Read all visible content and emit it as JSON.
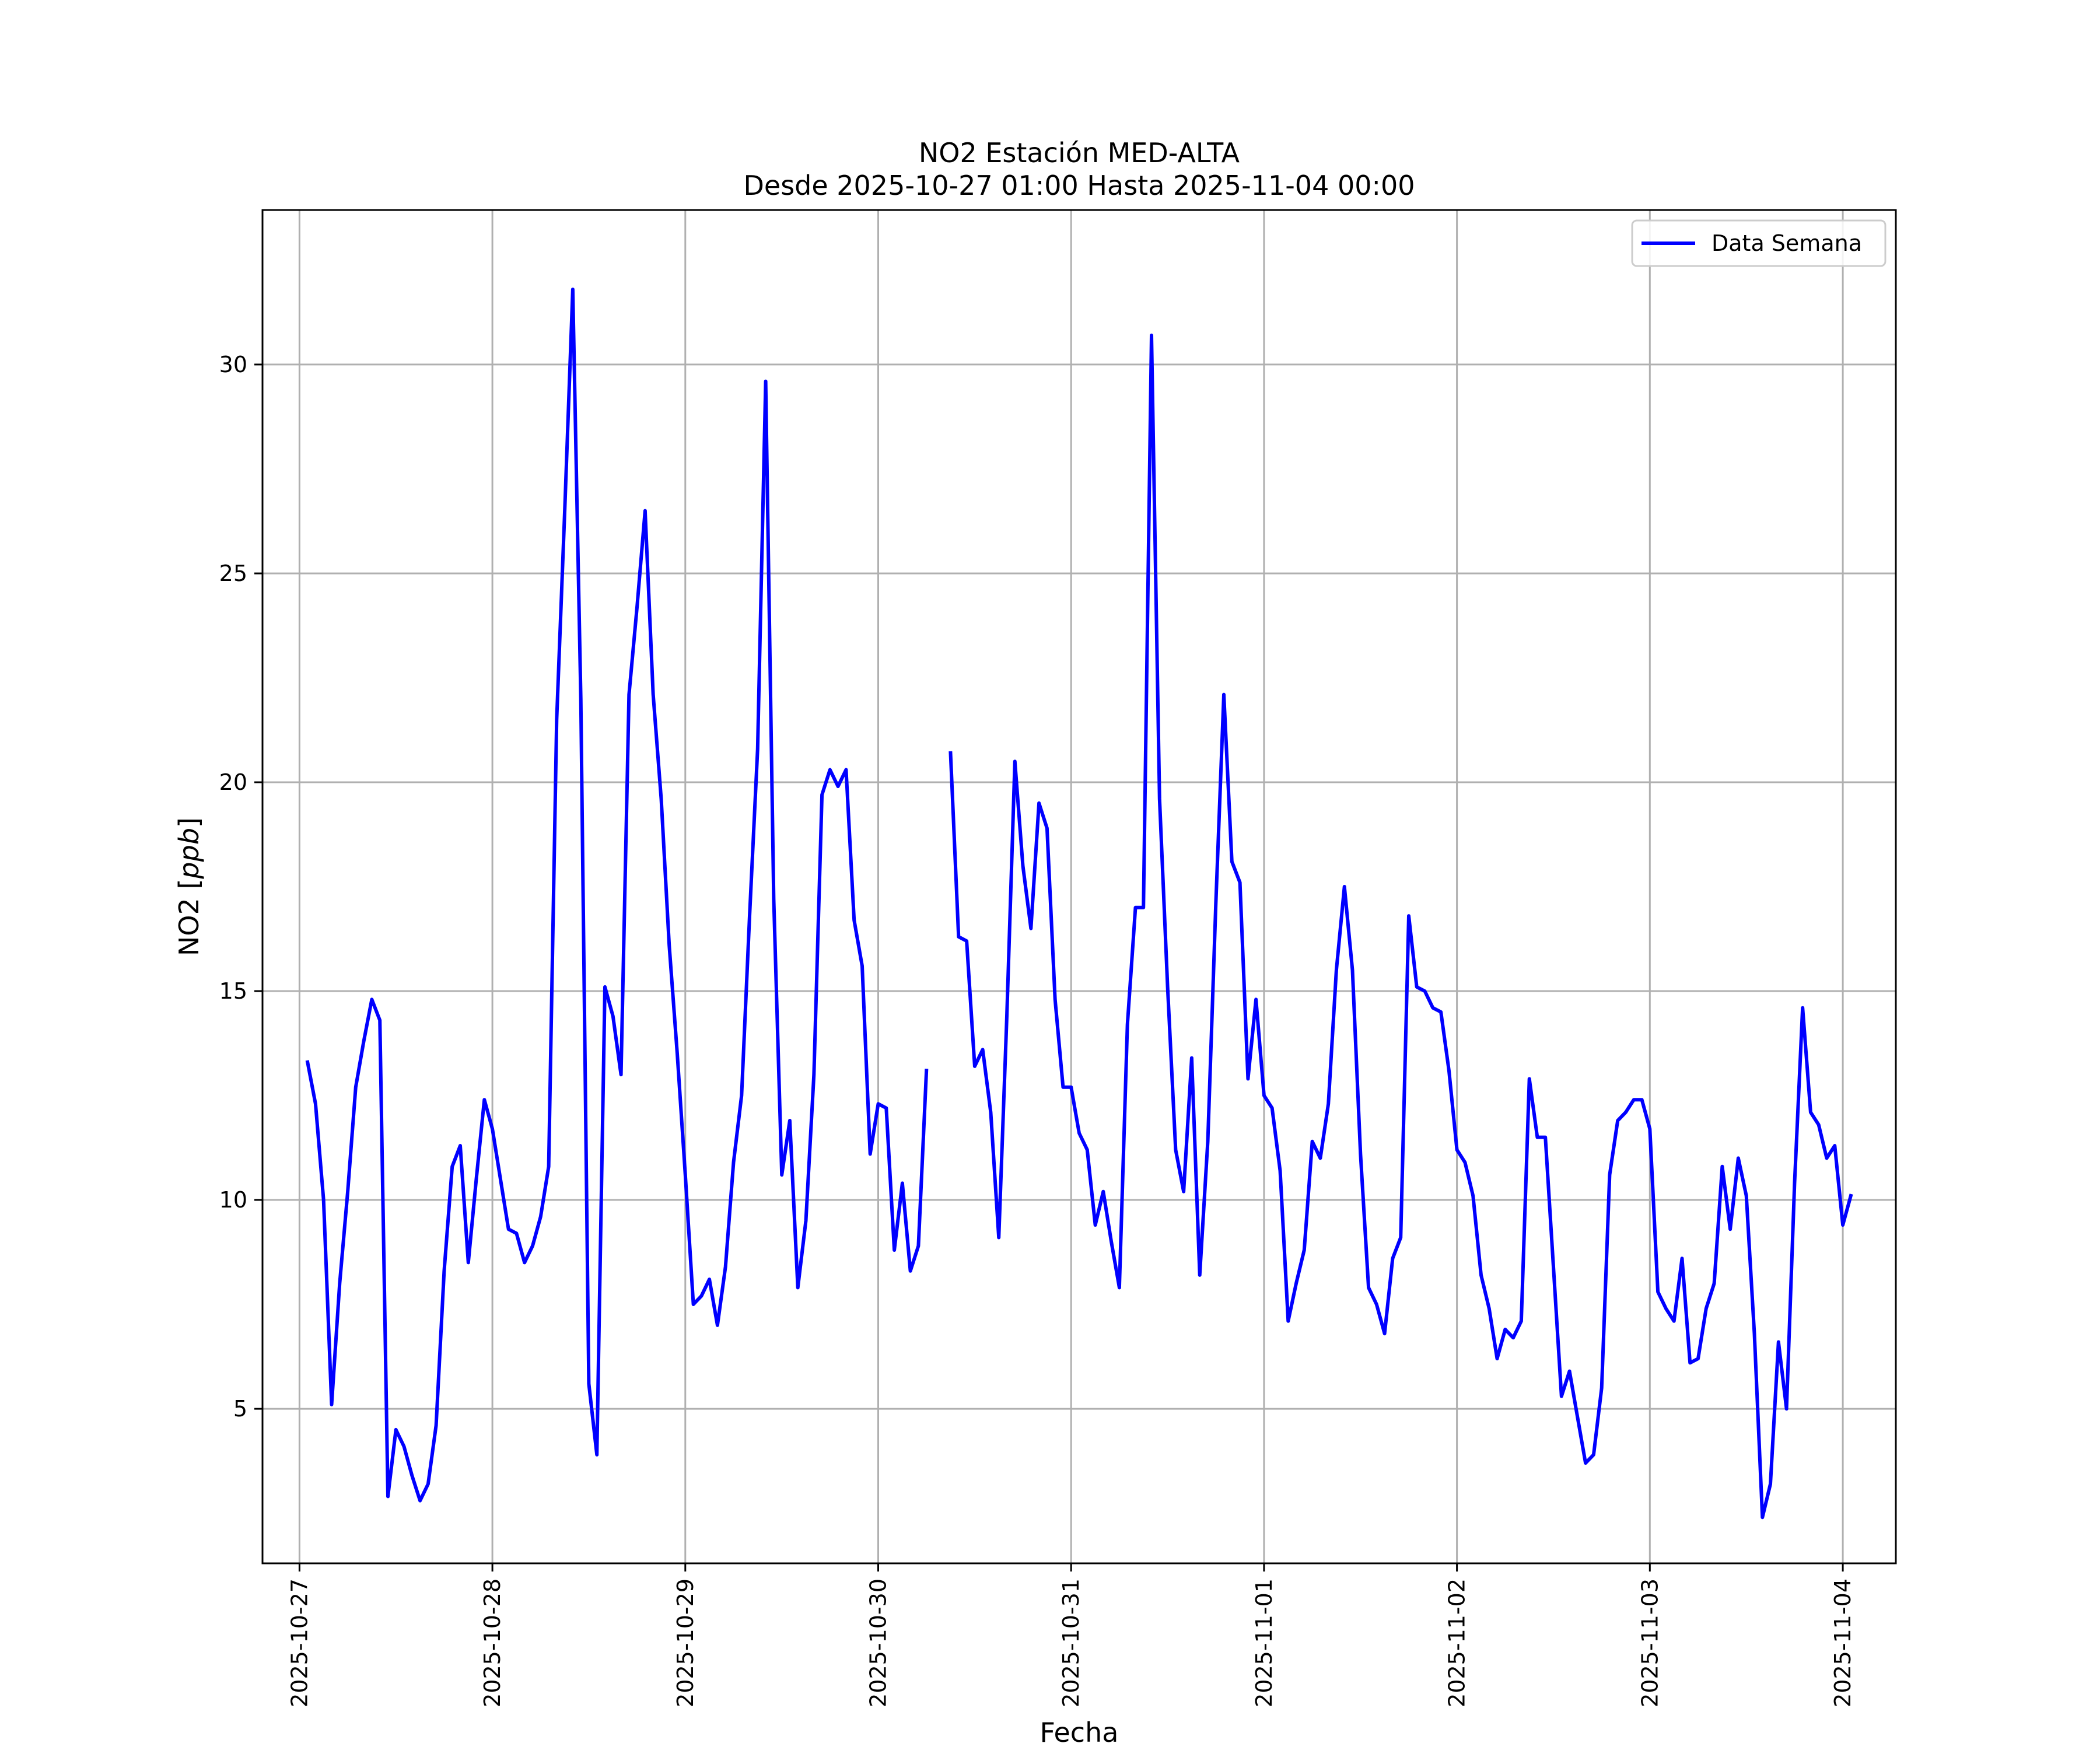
{
  "chart_data": {
    "type": "line",
    "title_line1": "NO2 Estación MED-ALTA",
    "title_line2": "Desde 2025-10-27 01:00 Hasta 2025-11-04 00:00",
    "xlabel": "Fecha",
    "ylabel": "NO2 [ppb]",
    "ylabel_prefix": "NO2 [",
    "ylabel_unit": "ppb",
    "ylabel_suffix": "]",
    "x_tick_labels": [
      "2025-10-27",
      "2025-10-28",
      "2025-10-29",
      "2025-10-30",
      "2025-10-31",
      "2025-11-01",
      "2025-11-02",
      "2025-11-03",
      "2025-11-04"
    ],
    "y_ticks": [
      5,
      10,
      15,
      20,
      25,
      30
    ],
    "y_tick_labels": [
      "5",
      "10",
      "15",
      "20",
      "25",
      "30"
    ],
    "xlim": [
      "2025-10-26 19:24",
      "2025-11-04 06:36"
    ],
    "ylim": [
      1.3,
      33.7
    ],
    "grid": true,
    "legend_position": "top-right",
    "series": [
      {
        "name": "Data Semana",
        "color": "#0000ff",
        "start": "2025-10-27 01:00",
        "step_hours": 1,
        "values": [
          13.3,
          12.3,
          10,
          5.1,
          8,
          10.2,
          12.7,
          13.8,
          14.8,
          14.3,
          2.9,
          4.5,
          4.1,
          3.4,
          2.8,
          3.2,
          4.6,
          8.3,
          10.8,
          11.3,
          8.5,
          10.5,
          12.4,
          11.7,
          10.5,
          9.3,
          9.2,
          8.5,
          8.9,
          9.6,
          10.8,
          21.5,
          26.5,
          31.8,
          22,
          5.6,
          3.9,
          15.1,
          14.4,
          13,
          22.1,
          24.2,
          26.5,
          22.1,
          19.6,
          16.1,
          13.5,
          10.6,
          7.5,
          7.7,
          8.1,
          7,
          8.4,
          10.9,
          12.5,
          16.8,
          20.8,
          29.6,
          17.2,
          10.6,
          11.9,
          7.9,
          9.5,
          13,
          19.7,
          20.3,
          19.9,
          20.3,
          16.7,
          15.6,
          11.1,
          12.3,
          12.2,
          8.8,
          10.4,
          8.3,
          8.9,
          13.1,
          null,
          null,
          20.7,
          16.3,
          16.2,
          13.2,
          13.6,
          12.1,
          9.1,
          14.4,
          20.5,
          18,
          16.5,
          19.5,
          18.9,
          14.8,
          12.7,
          12.7,
          11.6,
          11.2,
          9.4,
          10.2,
          9,
          7.9,
          14.2,
          17,
          17,
          30.7,
          19.6,
          15.1,
          11.2,
          10.2,
          13.4,
          8.2,
          11.4,
          17.1,
          22.1,
          18.1,
          17.6,
          12.9,
          14.8,
          12.5,
          12.2,
          10.7,
          7.1,
          8,
          8.8,
          11.4,
          11,
          12.3,
          15.5,
          17.5,
          15.5,
          11.1,
          7.9,
          7.5,
          6.8,
          8.6,
          9.1,
          16.8,
          15.1,
          15,
          14.6,
          14.5,
          13.1,
          11.2,
          10.9,
          10.1,
          8.2,
          7.4,
          6.2,
          6.9,
          6.7,
          7.1,
          12.9,
          11.5,
          11.5,
          8.4,
          5.3,
          5.9,
          4.8,
          3.7,
          3.9,
          5.5,
          10.6,
          11.9,
          12.1,
          12.4,
          12.4,
          11.7,
          7.8,
          7.4,
          7.1,
          8.6,
          6.1,
          6.2,
          7.4,
          8,
          10.8,
          9.3,
          11,
          10.1,
          6.8,
          2.4,
          3.2,
          6.6,
          5,
          10.4,
          14.6,
          12.1,
          11.8,
          11,
          11.3,
          9.4,
          10.1
        ]
      }
    ]
  }
}
